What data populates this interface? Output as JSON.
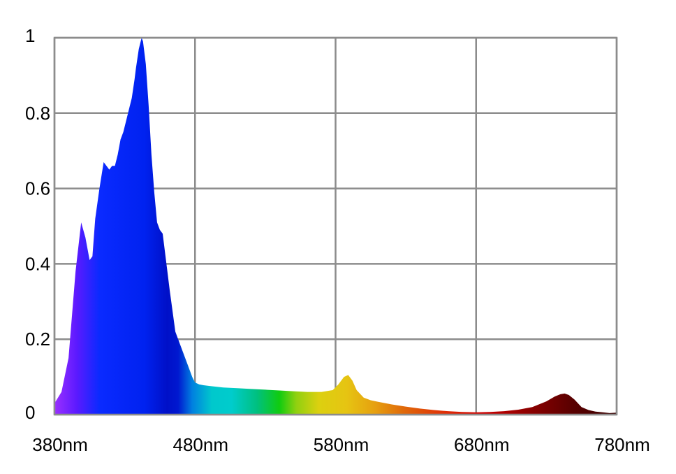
{
  "chart_data": {
    "type": "area",
    "title": "",
    "xlabel": "",
    "ylabel": "",
    "xlim": [
      380,
      780
    ],
    "ylim": [
      0,
      1
    ],
    "grid": true,
    "legend": "none",
    "x_ticks": [
      {
        "value": 380,
        "label": "380nm"
      },
      {
        "value": 480,
        "label": "480nm"
      },
      {
        "value": 580,
        "label": "580nm"
      },
      {
        "value": 680,
        "label": "680nm"
      },
      {
        "value": 780,
        "label": "780nm"
      }
    ],
    "y_ticks": [
      {
        "value": 0,
        "label": "0"
      },
      {
        "value": 0.2,
        "label": "0.2"
      },
      {
        "value": 0.4,
        "label": "0.4"
      },
      {
        "value": 0.6,
        "label": "0.6"
      },
      {
        "value": 0.8,
        "label": "0.8"
      },
      {
        "value": 1,
        "label": "1"
      }
    ],
    "fill": "spectral-gradient",
    "series": [
      {
        "x": [
          380,
          385,
          390,
          395,
          399,
          402,
          405,
          407,
          409,
          412,
          415,
          417,
          419,
          421,
          423,
          425,
          427,
          429,
          431,
          433,
          435,
          437,
          438,
          440,
          442,
          443,
          445,
          447,
          449,
          451,
          453,
          455,
          457,
          459,
          462,
          466,
          469,
          472,
          475,
          478,
          480,
          483,
          486,
          490,
          495,
          500,
          505,
          510,
          520,
          530,
          540,
          550,
          560,
          570,
          578,
          582,
          586,
          589,
          592,
          595,
          600,
          605,
          610,
          620,
          630,
          640,
          650,
          660,
          670,
          680,
          690,
          700,
          710,
          720,
          730,
          736,
          740,
          743,
          746,
          750,
          755,
          760,
          765,
          770,
          775,
          780
        ],
        "y": [
          0.03,
          0.06,
          0.15,
          0.38,
          0.51,
          0.47,
          0.41,
          0.42,
          0.52,
          0.6,
          0.67,
          0.66,
          0.65,
          0.66,
          0.66,
          0.69,
          0.73,
          0.75,
          0.78,
          0.81,
          0.84,
          0.89,
          0.92,
          0.97,
          1.0,
          0.99,
          0.93,
          0.82,
          0.69,
          0.59,
          0.51,
          0.49,
          0.48,
          0.42,
          0.33,
          0.22,
          0.19,
          0.16,
          0.13,
          0.1,
          0.085,
          0.08,
          0.078,
          0.076,
          0.074,
          0.072,
          0.071,
          0.07,
          0.068,
          0.066,
          0.064,
          0.062,
          0.06,
          0.06,
          0.065,
          0.08,
          0.1,
          0.105,
          0.09,
          0.065,
          0.045,
          0.038,
          0.034,
          0.027,
          0.021,
          0.016,
          0.012,
          0.009,
          0.007,
          0.006,
          0.007,
          0.009,
          0.013,
          0.02,
          0.035,
          0.048,
          0.054,
          0.056,
          0.052,
          0.04,
          0.02,
          0.012,
          0.008,
          0.006,
          0.004,
          0.005
        ]
      }
    ]
  }
}
